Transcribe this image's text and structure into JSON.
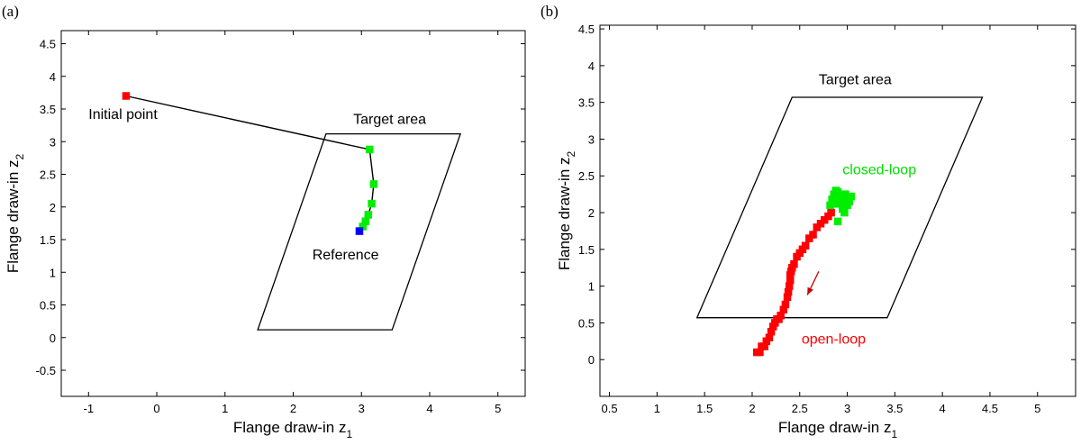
{
  "chart_data": [
    {
      "type": "line",
      "panel": "(a)",
      "xlabel": "Flange draw-in z",
      "xlabel_sub": "1",
      "ylabel": "Flange draw-in z",
      "ylabel_sub": "2",
      "xlim": [
        -1.4,
        5.4
      ],
      "ylim": [
        -0.9,
        4.7
      ],
      "xticks": [
        -1,
        0,
        1,
        2,
        3,
        4,
        5
      ],
      "yticks": [
        -0.5,
        0,
        0.5,
        1,
        1.5,
        2,
        2.5,
        3,
        3.5,
        4,
        4.5
      ],
      "grid": false,
      "target_area": [
        [
          1.48,
          0.12
        ],
        [
          3.45,
          0.12
        ],
        [
          4.45,
          3.12
        ],
        [
          2.48,
          3.12
        ]
      ],
      "series": [
        {
          "color": "#000000",
          "marker": "none",
          "x": [
            -0.45,
            3.12,
            3.18,
            3.15,
            3.1,
            3.06,
            3.02,
            2.97
          ],
          "y": [
            3.7,
            2.88,
            2.35,
            2.05,
            1.88,
            1.78,
            1.7,
            1.63
          ]
        },
        {
          "color": "#ff0000",
          "marker": "square",
          "x": [
            -0.45
          ],
          "y": [
            3.7
          ]
        },
        {
          "color": "#00ee00",
          "marker": "square",
          "x": [
            3.12,
            3.18,
            3.15,
            3.1,
            3.06,
            3.02
          ],
          "y": [
            2.88,
            2.35,
            2.05,
            1.88,
            1.78,
            1.7
          ]
        },
        {
          "color": "#0000ff",
          "marker": "square",
          "x": [
            2.97
          ],
          "y": [
            1.63
          ]
        }
      ],
      "annotations": [
        {
          "text": "Initial point",
          "x": -1.0,
          "y": 3.35,
          "color": "#000000"
        },
        {
          "text": "Target area",
          "x": 2.88,
          "y": 3.27,
          "color": "#000000"
        },
        {
          "text": "Reference",
          "x": 2.28,
          "y": 1.2,
          "color": "#000000"
        }
      ]
    },
    {
      "type": "scatter",
      "panel": "(b)",
      "xlabel": "Flange draw-in z",
      "xlabel_sub": "1",
      "ylabel": "Flange draw-in z",
      "ylabel_sub": "2",
      "xlim": [
        0.4,
        5.4
      ],
      "ylim": [
        -0.5,
        4.55
      ],
      "xticks": [
        0.5,
        1,
        1.5,
        2,
        2.5,
        3,
        3.5,
        4,
        4.5,
        5
      ],
      "yticks": [
        0,
        0.5,
        1,
        1.5,
        2,
        2.5,
        3,
        3.5,
        4,
        4.5
      ],
      "grid": false,
      "target_area": [
        [
          1.42,
          0.57
        ],
        [
          3.42,
          0.57
        ],
        [
          4.42,
          3.57
        ],
        [
          2.42,
          3.57
        ]
      ],
      "series": [
        {
          "color": "#ff0000",
          "marker": "square",
          "x": [
            2.05,
            2.08,
            2.1,
            2.13,
            2.15,
            2.18,
            2.2,
            2.22,
            2.24,
            2.26,
            2.28,
            2.3,
            2.33,
            2.35,
            2.37,
            2.38,
            2.39,
            2.4,
            2.4,
            2.41,
            2.42,
            2.44,
            2.47,
            2.5,
            2.53,
            2.56,
            2.6,
            2.64,
            2.68,
            2.72,
            2.76,
            2.8,
            2.83
          ],
          "y": [
            0.1,
            0.1,
            0.18,
            0.18,
            0.25,
            0.3,
            0.38,
            0.45,
            0.5,
            0.55,
            0.55,
            0.6,
            0.68,
            0.75,
            0.85,
            0.92,
            1.0,
            1.08,
            1.15,
            1.2,
            1.25,
            1.3,
            1.4,
            1.45,
            1.5,
            1.55,
            1.65,
            1.7,
            1.8,
            1.85,
            1.9,
            1.95,
            2.0
          ]
        },
        {
          "color": "#00ee00",
          "marker": "square",
          "x": [
            2.82,
            2.84,
            2.86,
            2.88,
            2.9,
            2.92,
            2.94,
            2.96,
            2.98,
            3.0,
            3.02,
            3.04,
            2.95,
            2.97,
            2.9,
            2.88,
            2.93,
            3.0
          ],
          "y": [
            2.1,
            2.18,
            2.25,
            2.3,
            2.28,
            2.22,
            2.15,
            2.08,
            2.25,
            2.2,
            2.15,
            2.22,
            2.05,
            2.0,
            1.88,
            2.12,
            2.18,
            2.1
          ]
        }
      ],
      "arrow": {
        "from": [
          2.7,
          1.2
        ],
        "to": [
          2.58,
          0.88
        ],
        "color": "#cc0000"
      },
      "annotations": [
        {
          "text": "Target area",
          "x": 2.7,
          "y": 3.75,
          "color": "#000000"
        },
        {
          "text": "closed-loop",
          "x": 2.95,
          "y": 2.52,
          "color": "#00dd00"
        },
        {
          "text": "open-loop",
          "x": 2.52,
          "y": 0.22,
          "color": "#ff0000"
        }
      ]
    }
  ]
}
